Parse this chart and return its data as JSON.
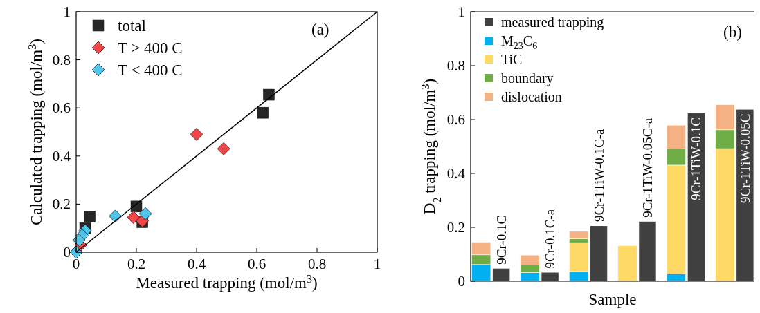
{
  "chart_data": [
    {
      "type": "scatter",
      "xlabel": "Measured trapping (mol/m$^{3}$)",
      "ylabel": "Calculated trapping (mol/m$^{3}$)",
      "xlim": [
        0,
        1
      ],
      "ylim": [
        0,
        1
      ],
      "xticks": [
        0,
        0.2,
        0.4,
        0.6,
        0.8,
        1
      ],
      "yticks": [
        0,
        0.2,
        0.4,
        0.6,
        0.8,
        1
      ],
      "legend": "top left",
      "annotations": [
        "(a)"
      ],
      "series": [
        {
          "name": "total",
          "type": "scatter",
          "marker": "square",
          "color": "#262626",
          "x": [
            0.64,
            0.62,
            0.2,
            0.045,
            0.03,
            0.22
          ],
          "values": [
            0.655,
            0.58,
            0.19,
            0.148,
            0.1,
            0.125
          ]
        },
        {
          "name": "T > 400 C",
          "type": "scatter",
          "marker": "diamond",
          "color": "#f04848",
          "x": [
            0.4,
            0.49,
            0.19,
            0.22,
            0.015
          ],
          "values": [
            0.49,
            0.43,
            0.145,
            0.13,
            0.03
          ]
        },
        {
          "name": "T < 400 C",
          "type": "scatter",
          "marker": "diamond",
          "color": "#4fc3ea",
          "x": [
            0.13,
            0.23,
            0.03,
            0.02,
            0.01,
            0
          ],
          "values": [
            0.15,
            0.16,
            0.09,
            0.07,
            0.05,
            0
          ]
        },
        {
          "type": "line",
          "marker": "none",
          "color": "#000000",
          "x": [
            0,
            1
          ],
          "values": [
            0,
            1
          ]
        }
      ]
    },
    {
      "type": "bar",
      "xlabel": "Sample",
      "ylabel": "D$_{2}$ trapping (mol/m$^{3}$)",
      "ylim": [
        0,
        1
      ],
      "yticks": [
        0,
        0.2,
        0.4,
        0.6,
        0.8,
        1
      ],
      "legend": "top left",
      "annotations": [
        "(b)"
      ],
      "categories": [
        "9Cr-0.1C",
        "9Cr-0.1C-a",
        "9Cr-1TiW-0.1C-a",
        "9Cr-1TiW-0.05C-a",
        "9Cr-1TiW-0.1C",
        "9Cr-1TiW-0.05C"
      ],
      "series": [
        {
          "name": "measured trapping",
          "color": "#404040",
          "values": [
            0.047,
            0.032,
            0.205,
            0.221,
            0.623,
            0.637
          ]
        },
        {
          "name": "M$_{23}$C$_{6}$",
          "color": "#00b0f0",
          "values": [
            0.062,
            0.032,
            0.036,
            null,
            0.027,
            null
          ],
          "base": [
            0,
            0,
            0,
            null,
            0,
            null
          ]
        },
        {
          "name": "TiC",
          "color": "#ffd966",
          "values": [
            null,
            null,
            0.107,
            0.132,
            0.404,
            0.492
          ],
          "base": [
            null,
            null,
            0.036,
            0,
            0.027,
            0
          ]
        },
        {
          "name": "boundary",
          "color": "#70ad47",
          "values": [
            0.036,
            0.028,
            0.015,
            null,
            0.06,
            0.07
          ],
          "base": [
            0.062,
            0.032,
            0.143,
            null,
            0.431,
            0.492
          ]
        },
        {
          "name": "dislocation",
          "color": "#f4b183",
          "values": [
            0.047,
            0.037,
            0.027,
            null,
            0.088,
            0.093
          ],
          "base": [
            0.098,
            0.06,
            0.158,
            null,
            0.491,
            0.562
          ]
        }
      ]
    }
  ]
}
